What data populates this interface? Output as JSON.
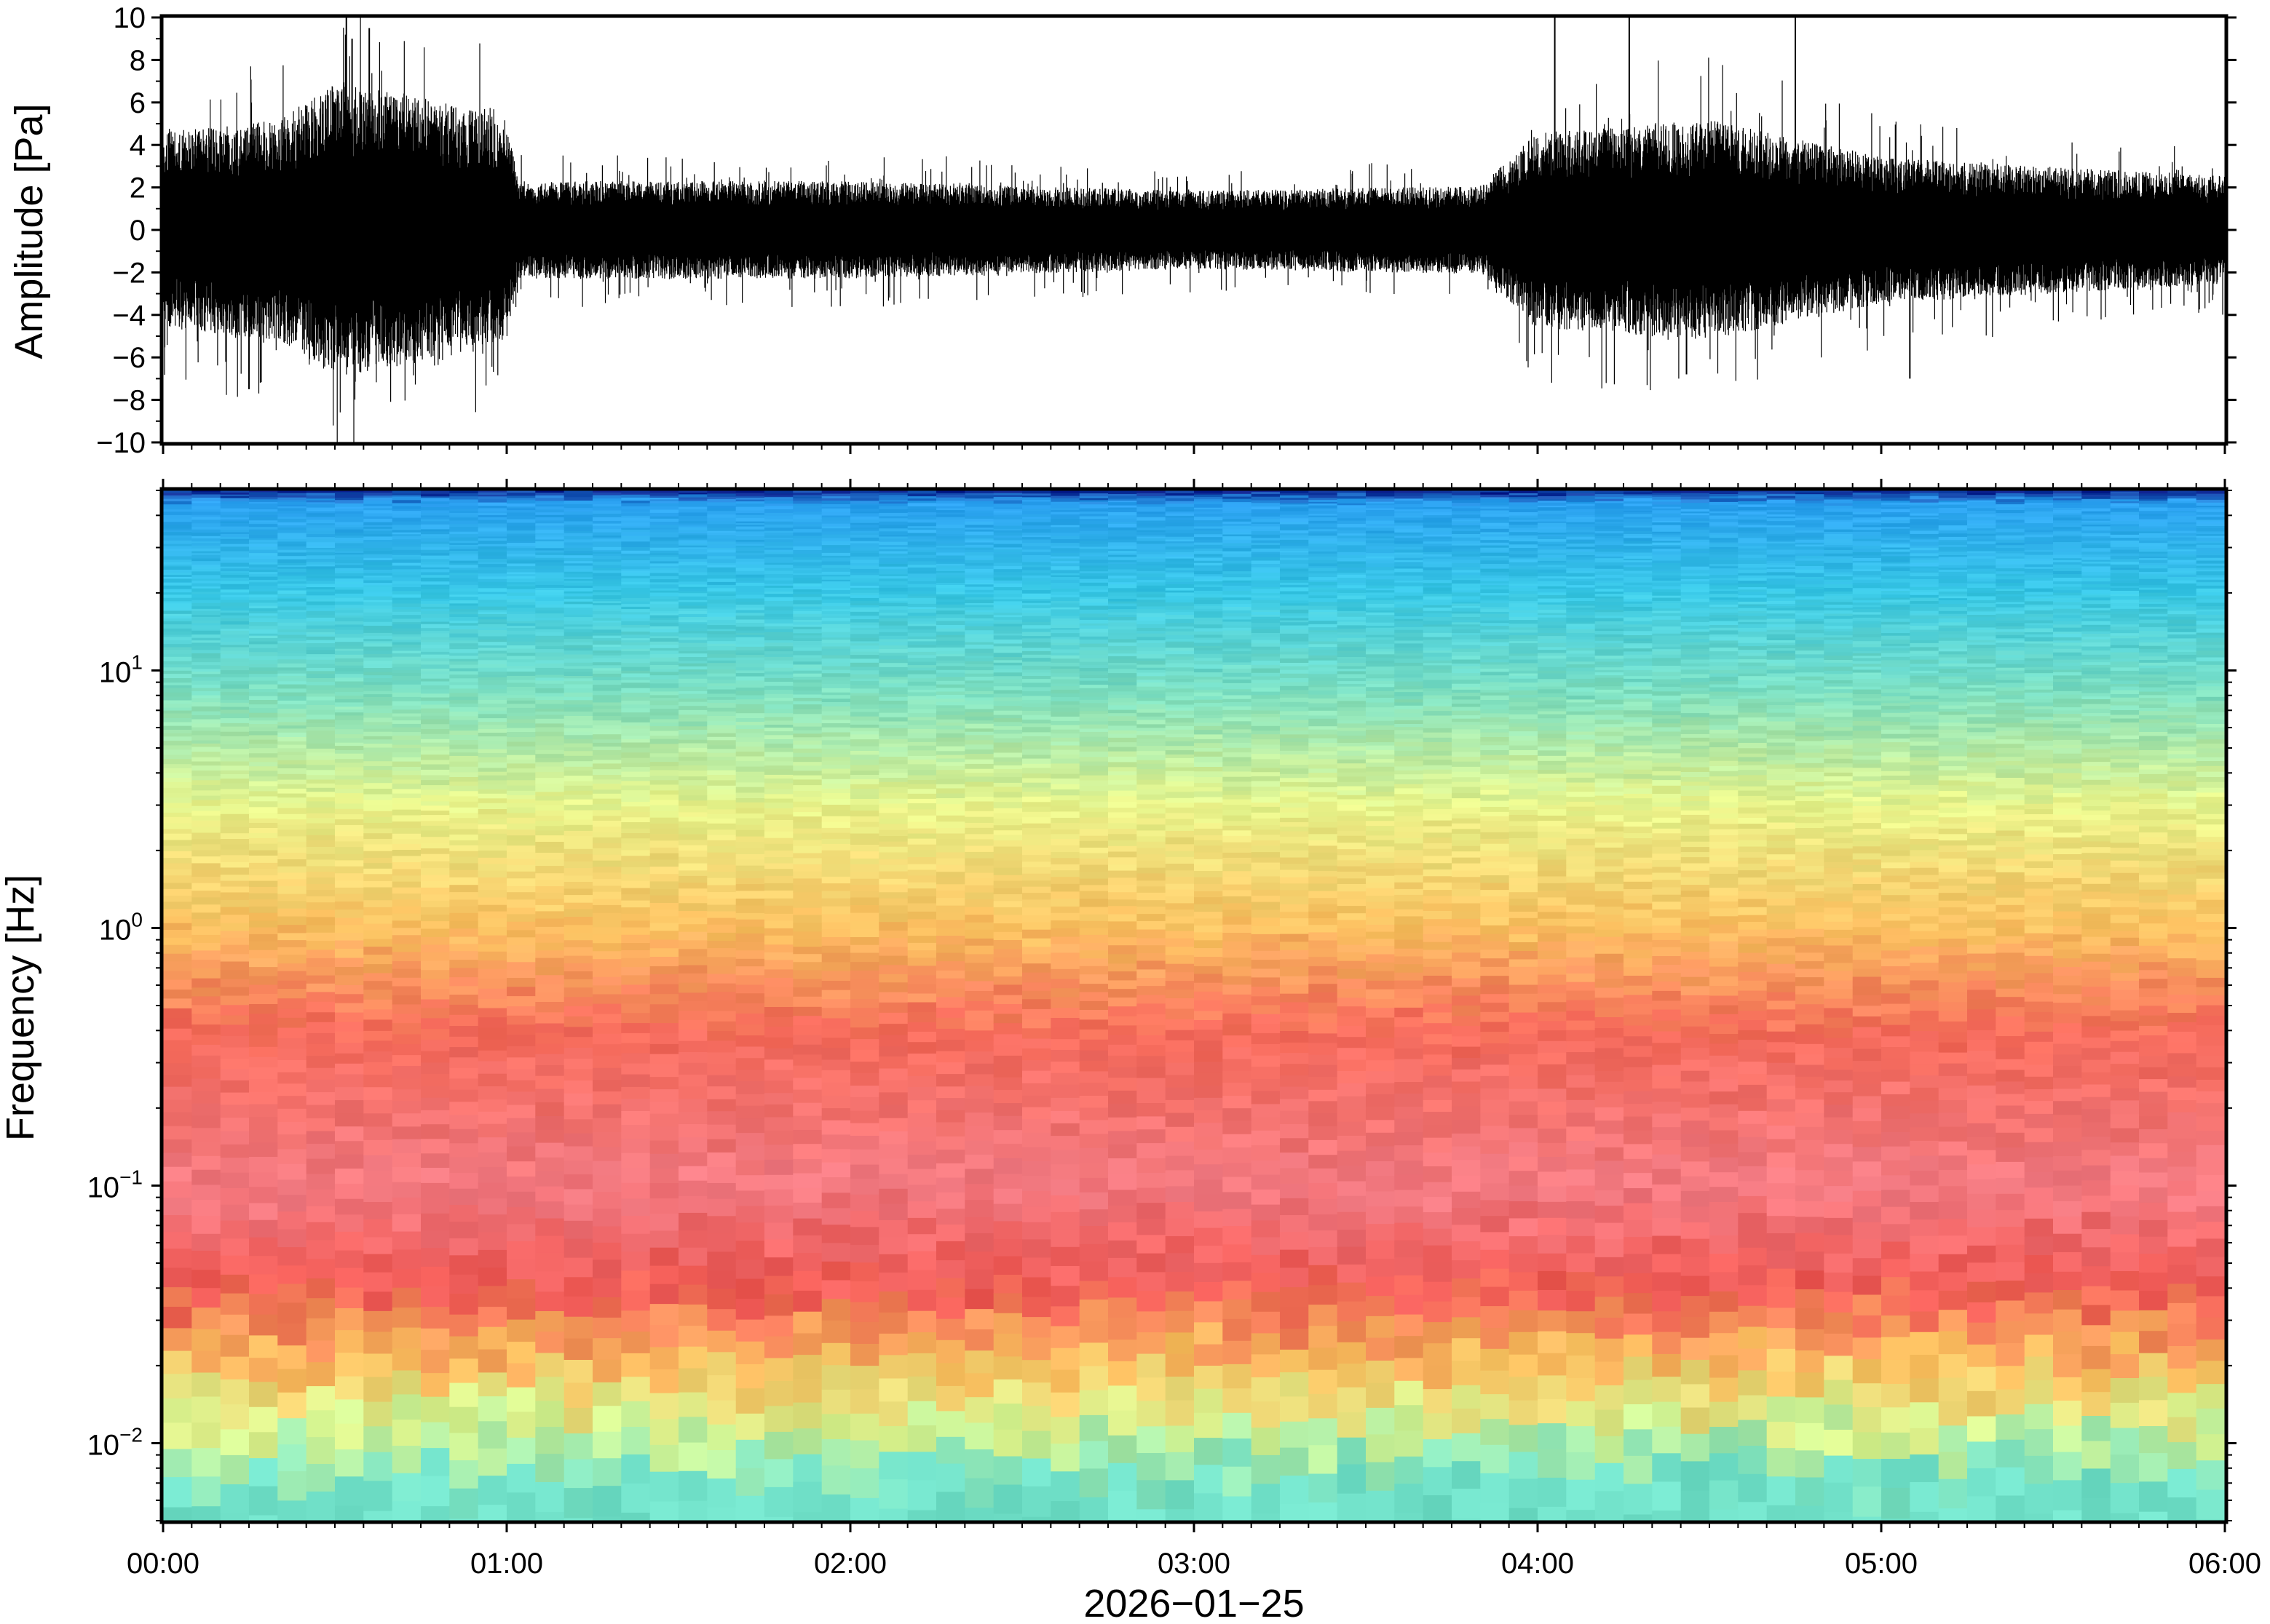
{
  "chart_data": [
    {
      "type": "line",
      "title": "",
      "ylabel": "Amplitude [Pa]",
      "xlabel": "",
      "ylim": [
        -10,
        10
      ],
      "xlim": [
        "00:00",
        "06:00"
      ],
      "yticks": [
        "10",
        "8",
        "6",
        "4",
        "2",
        "0",
        "−2",
        "−4",
        "−6",
        "−8",
        "−10"
      ],
      "grid": false,
      "series": [
        {
          "color": "#000000",
          "envelope": [
            {
              "time": "00:00",
              "peak": 4.0
            },
            {
              "time": "00:20",
              "peak": 4.5
            },
            {
              "time": "00:30",
              "peak": 6.0
            },
            {
              "time": "00:45",
              "peak": 5.5
            },
            {
              "time": "01:00",
              "peak": 4.5
            },
            {
              "time": "01:02",
              "peak": 2.0
            },
            {
              "time": "02:00",
              "peak": 2.0
            },
            {
              "time": "03:00",
              "peak": 1.6
            },
            {
              "time": "03:50",
              "peak": 1.8
            },
            {
              "time": "04:00",
              "peak": 4.0
            },
            {
              "time": "04:30",
              "peak": 4.5
            },
            {
              "time": "05:00",
              "peak": 3.0
            },
            {
              "time": "06:00",
              "peak": 2.2
            }
          ],
          "spikes": [
            {
              "time": "00:32",
              "value": 10
            },
            {
              "time": "00:33",
              "value": 9
            },
            {
              "time": "00:36",
              "value": 9.5
            },
            {
              "time": "00:15",
              "value": -7.5
            },
            {
              "time": "04:03",
              "value": 10
            },
            {
              "time": "04:16",
              "value": 10
            },
            {
              "time": "04:45",
              "value": 10
            },
            {
              "time": "04:26",
              "value": -6.8
            },
            {
              "time": "05:05",
              "value": -7.0
            }
          ]
        }
      ]
    },
    {
      "type": "heatmap",
      "title": "",
      "ylabel": "Frequency [Hz]",
      "xlabel": "2026−01−25",
      "xlim": [
        "00:00",
        "06:00"
      ],
      "ylim": [
        0.005,
        50
      ],
      "yscale": "log",
      "xticks": [
        "00:00",
        "01:00",
        "02:00",
        "03:00",
        "04:00",
        "05:00",
        "06:00"
      ],
      "yticks": [
        {
          "base": "10",
          "exp": "1"
        },
        {
          "base": "10",
          "exp": "0"
        },
        {
          "base": "10",
          "exp": "−1"
        },
        {
          "base": "10",
          "exp": "−2"
        }
      ],
      "colormap": "rainbow (blue high frequency → yellow mid → red/pink low → cyan lowest)",
      "frequency_profile": [
        {
          "freq": 50,
          "color": "#0a1e8c"
        },
        {
          "freq": 45,
          "color": "#2aa0f0"
        },
        {
          "freq": 20,
          "color": "#38c8e6"
        },
        {
          "freq": 8,
          "color": "#7fe0c0"
        },
        {
          "freq": 3,
          "color": "#e8f58c"
        },
        {
          "freq": 1,
          "color": "#fbc060"
        },
        {
          "freq": 0.4,
          "color": "#f56a5a"
        },
        {
          "freq": 0.1,
          "color": "#f27a82"
        },
        {
          "freq": 0.04,
          "color": "#f05a55"
        },
        {
          "freq": 0.02,
          "color": "#fbc060"
        },
        {
          "freq": 0.012,
          "color": "#d8f590"
        },
        {
          "freq": 0.007,
          "color": "#70e0c8"
        }
      ]
    }
  ]
}
